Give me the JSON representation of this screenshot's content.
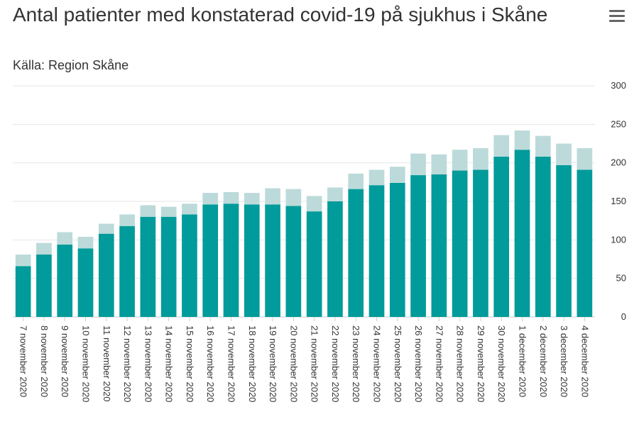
{
  "chart_data": {
    "type": "bar",
    "stacked": true,
    "title": "Antal patienter med konstaterad covid-19 på sjukhus i Skåne",
    "subtitle": "Källa: Region Skåne",
    "categories": [
      "7 november 2020",
      "8 november 2020",
      "9 november 2020",
      "10 november 2020",
      "11 november 2020",
      "12 november 2020",
      "13 november 2020",
      "14 november 2020",
      "15 november 2020",
      "16 november 2020",
      "17 november 2020",
      "18 november 2020",
      "19 november 2020",
      "20 november 2020",
      "21 november 2020",
      "22 november 2020",
      "23 november 2020",
      "24 november 2020",
      "25 november 2020",
      "26 november 2020",
      "27 november 2020",
      "28 november 2020",
      "29 november 2020",
      "30 november 2020",
      "1 december 2020",
      "2 december 2020",
      "3 december 2020",
      "4 december 2020"
    ],
    "series": [
      {
        "color": "#009b9a",
        "values": [
          66,
          81,
          94,
          89,
          108,
          118,
          130,
          130,
          133,
          146,
          147,
          146,
          146,
          144,
          137,
          150,
          166,
          171,
          174,
          184,
          185,
          190,
          191,
          208,
          217,
          208,
          197,
          191
        ]
      },
      {
        "color": "#bcdada",
        "values": [
          15,
          15,
          16,
          15,
          13,
          15,
          15,
          13,
          14,
          15,
          15,
          15,
          21,
          22,
          20,
          18,
          20,
          20,
          21,
          28,
          26,
          27,
          28,
          28,
          25,
          27,
          28,
          28
        ]
      }
    ],
    "totals": [
      81,
      96,
      110,
      104,
      121,
      133,
      145,
      143,
      147,
      161,
      162,
      161,
      167,
      166,
      157,
      168,
      186,
      191,
      195,
      212,
      211,
      217,
      219,
      236,
      242,
      235,
      225,
      219
    ],
    "ylim": [
      0,
      300
    ],
    "yticks": [
      0,
      50,
      100,
      150,
      200,
      250,
      300
    ],
    "grid": true,
    "legend": "none",
    "menu_icon": "hamburger-menu-icon"
  }
}
